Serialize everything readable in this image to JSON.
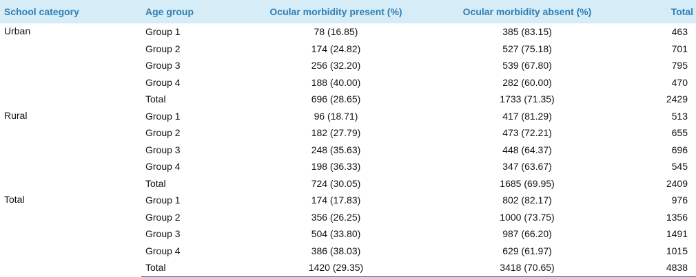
{
  "headers": {
    "school_category": "School category",
    "age_group": "Age group",
    "present": "Ocular morbidity present (%)",
    "absent": "Ocular morbidity absent (%)",
    "total": "Total"
  },
  "sections": [
    {
      "category": "Urban",
      "rows": [
        {
          "group": "Group 1",
          "present": "78 (16.85)",
          "absent": "385 (83.15)",
          "total": "463"
        },
        {
          "group": "Group 2",
          "present": "174 (24.82)",
          "absent": "527 (75.18)",
          "total": "701"
        },
        {
          "group": "Group 3",
          "present": "256 (32.20)",
          "absent": "539 (67.80)",
          "total": "795"
        },
        {
          "group": "Group 4",
          "present": "188 (40.00)",
          "absent": "282 (60.00)",
          "total": "470"
        },
        {
          "group": "Total",
          "present": "696 (28.65)",
          "absent": "1733 (71.35)",
          "total": "2429"
        }
      ]
    },
    {
      "category": "Rural",
      "rows": [
        {
          "group": "Group 1",
          "present": "96 (18.71)",
          "absent": "417 (81.29)",
          "total": "513"
        },
        {
          "group": "Group 2",
          "present": "182 (27.79)",
          "absent": "473 (72.21)",
          "total": "655"
        },
        {
          "group": "Group 3",
          "present": "248 (35.63)",
          "absent": "448 (64.37)",
          "total": "696"
        },
        {
          "group": "Group 4",
          "present": "198 (36.33)",
          "absent": "347 (63.67)",
          "total": "545"
        },
        {
          "group": "Total",
          "present": "724 (30.05)",
          "absent": "1685 (69.95)",
          "total": "2409"
        }
      ]
    },
    {
      "category": "Total",
      "rows": [
        {
          "group": "Group 1",
          "present": "174 (17.83)",
          "absent": "802 (82.17)",
          "total": "976"
        },
        {
          "group": "Group 2",
          "present": "356 (26.25)",
          "absent": "1000 (73.75)",
          "total": "1356"
        },
        {
          "group": "Group 3",
          "present": "504 (33.80)",
          "absent": "987 (66.20)",
          "total": "1491"
        },
        {
          "group": "Group 4",
          "present": "386 (38.03)",
          "absent": "629 (61.97)",
          "total": "1015"
        },
        {
          "group": "Total",
          "present": "1420 (29.35)",
          "absent": "3418 (70.65)",
          "total": "4838"
        }
      ]
    }
  ],
  "colors": {
    "header_bg": "#d6ecf7",
    "header_text": "#2f7fb5",
    "rule": "#2f7fb5"
  }
}
